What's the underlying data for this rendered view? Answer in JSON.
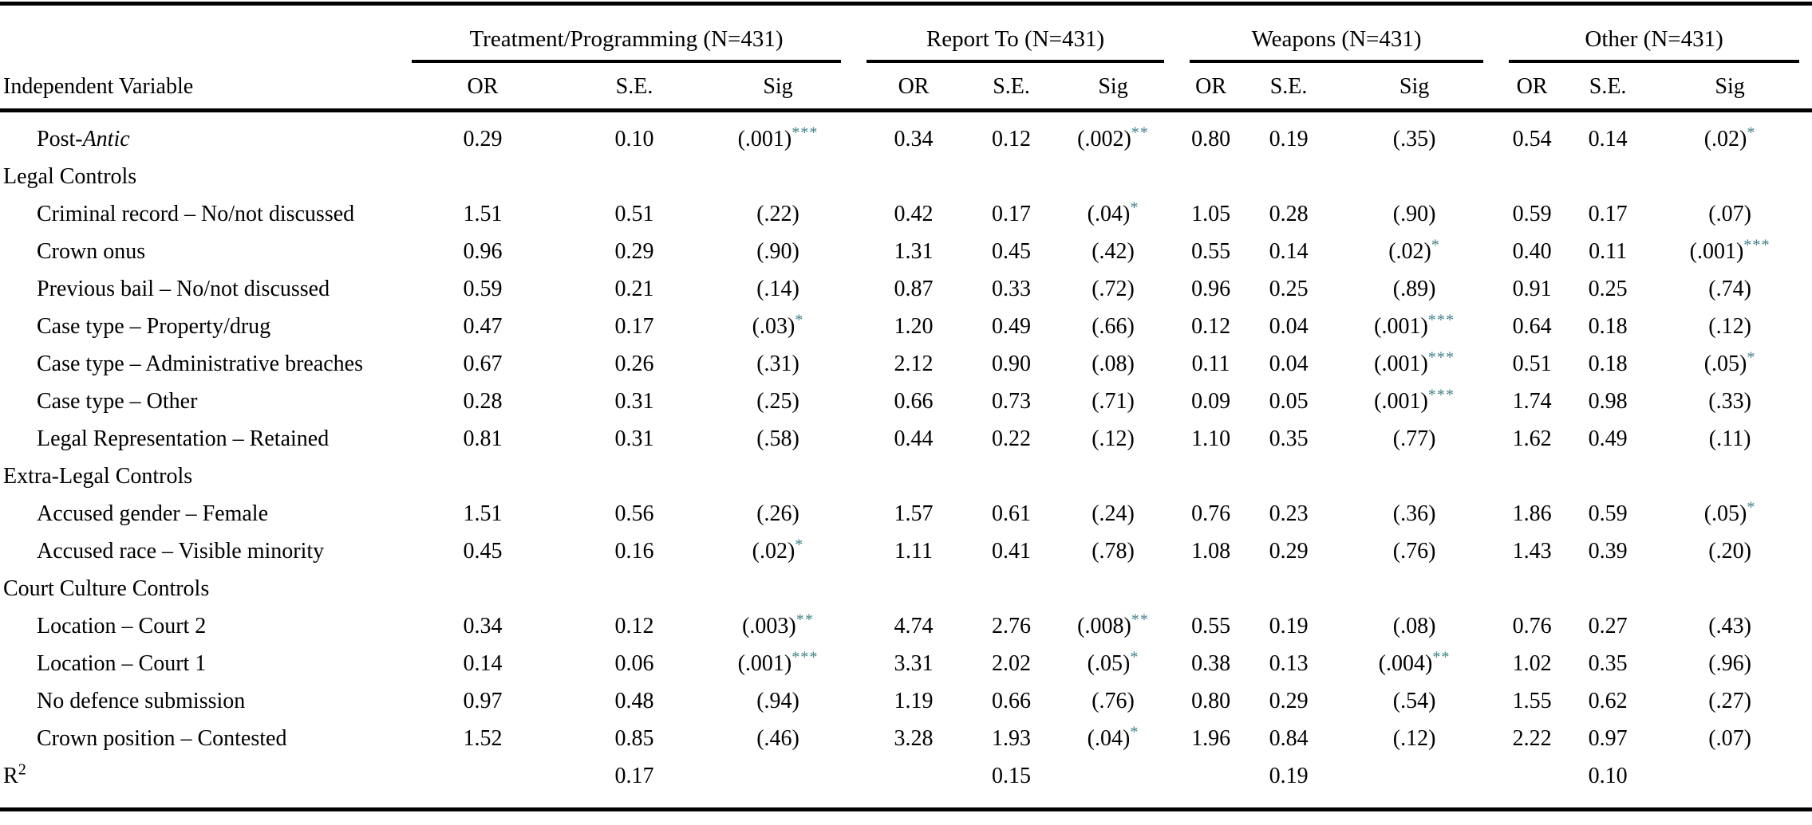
{
  "table": {
    "row_label_header": "Independent Variable",
    "groups": [
      {
        "label": "Treatment/Programming (N=431)"
      },
      {
        "label": "Report To (N=431)"
      },
      {
        "label": "Weapons (N=431)"
      },
      {
        "label": "Other (N=431)"
      }
    ],
    "sub_headers": [
      "OR",
      "S.E.",
      "Sig"
    ],
    "sig_star_color": "#3f7f89",
    "rows": [
      {
        "label": "Post-",
        "label_italic": "Antic",
        "indent": true,
        "cells": [
          [
            "0.29",
            "0.10",
            "(.001)",
            "***"
          ],
          [
            "0.34",
            "0.12",
            "(.002)",
            "**"
          ],
          [
            "0.80",
            "0.19",
            "(.35)",
            ""
          ],
          [
            "0.54",
            "0.14",
            "(.02)",
            "*"
          ]
        ]
      },
      {
        "label": "Legal Controls",
        "section": true,
        "cells": null
      },
      {
        "label": "Criminal record – No/not discussed",
        "indent": true,
        "cells": [
          [
            "1.51",
            "0.51",
            "(.22)",
            ""
          ],
          [
            "0.42",
            "0.17",
            "(.04)",
            "*"
          ],
          [
            "1.05",
            "0.28",
            "(.90)",
            ""
          ],
          [
            "0.59",
            "0.17",
            "(.07)",
            ""
          ]
        ]
      },
      {
        "label": "Crown onus",
        "indent": true,
        "cells": [
          [
            "0.96",
            "0.29",
            "(.90)",
            ""
          ],
          [
            "1.31",
            "0.45",
            "(.42)",
            ""
          ],
          [
            "0.55",
            "0.14",
            "(.02)",
            "*"
          ],
          [
            "0.40",
            "0.11",
            "(.001)",
            "***"
          ]
        ]
      },
      {
        "label": "Previous bail – No/not discussed",
        "indent": true,
        "cells": [
          [
            "0.59",
            "0.21",
            "(.14)",
            ""
          ],
          [
            "0.87",
            "0.33",
            "(.72)",
            ""
          ],
          [
            "0.96",
            "0.25",
            "(.89)",
            ""
          ],
          [
            "0.91",
            "0.25",
            "(.74)",
            ""
          ]
        ]
      },
      {
        "label": "Case type – Property/drug",
        "indent": true,
        "cells": [
          [
            "0.47",
            "0.17",
            "(.03)",
            "*"
          ],
          [
            "1.20",
            "0.49",
            "(.66)",
            ""
          ],
          [
            "0.12",
            "0.04",
            "(.001)",
            "***"
          ],
          [
            "0.64",
            "0.18",
            "(.12)",
            ""
          ]
        ]
      },
      {
        "label": "Case type – Administrative breaches",
        "indent": true,
        "cells": [
          [
            "0.67",
            "0.26",
            "(.31)",
            ""
          ],
          [
            "2.12",
            "0.90",
            "(.08)",
            ""
          ],
          [
            "0.11",
            "0.04",
            "(.001)",
            "***"
          ],
          [
            "0.51",
            "0.18",
            "(.05)",
            "*"
          ]
        ]
      },
      {
        "label": "Case type – Other",
        "indent": true,
        "cells": [
          [
            "0.28",
            "0.31",
            "(.25)",
            ""
          ],
          [
            "0.66",
            "0.73",
            "(.71)",
            ""
          ],
          [
            "0.09",
            "0.05",
            "(.001)",
            "***"
          ],
          [
            "1.74",
            "0.98",
            "(.33)",
            ""
          ]
        ]
      },
      {
        "label": "Legal Representation – Retained",
        "indent": true,
        "cells": [
          [
            "0.81",
            "0.31",
            "(.58)",
            ""
          ],
          [
            "0.44",
            "0.22",
            "(.12)",
            ""
          ],
          [
            "1.10",
            "0.35",
            "(.77)",
            ""
          ],
          [
            "1.62",
            "0.49",
            "(.11)",
            ""
          ]
        ]
      },
      {
        "label": "Extra-Legal Controls",
        "section": true,
        "cells": null
      },
      {
        "label": "Accused gender – Female",
        "indent": true,
        "cells": [
          [
            "1.51",
            "0.56",
            "(.26)",
            ""
          ],
          [
            "1.57",
            "0.61",
            "(.24)",
            ""
          ],
          [
            "0.76",
            "0.23",
            "(.36)",
            ""
          ],
          [
            "1.86",
            "0.59",
            "(.05)",
            "*"
          ]
        ]
      },
      {
        "label": "Accused race – Visible minority",
        "indent": true,
        "cells": [
          [
            "0.45",
            "0.16",
            "(.02)",
            "*"
          ],
          [
            "1.11",
            "0.41",
            "(.78)",
            ""
          ],
          [
            "1.08",
            "0.29",
            "(.76)",
            ""
          ],
          [
            "1.43",
            "0.39",
            "(.20)",
            ""
          ]
        ]
      },
      {
        "label": "Court Culture Controls",
        "section": true,
        "cells": null
      },
      {
        "label": "Location – Court 2",
        "indent": true,
        "cells": [
          [
            "0.34",
            "0.12",
            "(.003)",
            "**"
          ],
          [
            "4.74",
            "2.76",
            "(.008)",
            "**"
          ],
          [
            "0.55",
            "0.19",
            "(.08)",
            ""
          ],
          [
            "0.76",
            "0.27",
            "(.43)",
            ""
          ]
        ]
      },
      {
        "label": "Location – Court 1",
        "indent": true,
        "cells": [
          [
            "0.14",
            "0.06",
            "(.001)",
            "***"
          ],
          [
            "3.31",
            "2.02",
            "(.05)",
            "*"
          ],
          [
            "0.38",
            "0.13",
            "(.004)",
            "**"
          ],
          [
            "1.02",
            "0.35",
            "(.96)",
            ""
          ]
        ]
      },
      {
        "label": "No defence submission",
        "indent": true,
        "cells": [
          [
            "0.97",
            "0.48",
            "(.94)",
            ""
          ],
          [
            "1.19",
            "0.66",
            "(.76)",
            ""
          ],
          [
            "0.80",
            "0.29",
            "(.54)",
            ""
          ],
          [
            "1.55",
            "0.62",
            "(.27)",
            ""
          ]
        ]
      },
      {
        "label": "Crown position – Contested",
        "indent": true,
        "cells": [
          [
            "1.52",
            "0.85",
            "(.46)",
            ""
          ],
          [
            "3.28",
            "1.93",
            "(.04)",
            "*"
          ],
          [
            "1.96",
            "0.84",
            "(.12)",
            ""
          ],
          [
            "2.22",
            "0.97",
            "(.07)",
            ""
          ]
        ]
      },
      {
        "label": "R",
        "label_sup": "2",
        "section": true,
        "cells": [
          [
            "",
            "0.17",
            "",
            ""
          ],
          [
            "",
            "0.15",
            "",
            ""
          ],
          [
            "",
            "0.19",
            "",
            ""
          ],
          [
            "",
            "0.10",
            "",
            ""
          ]
        ]
      }
    ]
  }
}
